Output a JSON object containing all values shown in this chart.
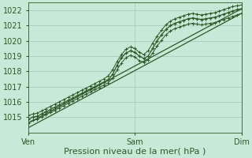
{
  "xlabel": "Pression niveau de la mer( hPa )",
  "bg_color": "#c8e8d8",
  "grid_color": "#a8ccc0",
  "line_color": "#2d5a27",
  "ylim": [
    1014.0,
    1022.5
  ],
  "xlim": [
    0,
    48
  ],
  "yticks": [
    1015,
    1016,
    1017,
    1018,
    1019,
    1020,
    1021,
    1022
  ],
  "xtick_positions": [
    0,
    24,
    48
  ],
  "xtick_labels": [
    "Ven",
    "Sam",
    "Dim"
  ],
  "straight_line1": [
    [
      0,
      48
    ],
    [
      1014.6,
      1022.1
    ]
  ],
  "straight_line2": [
    [
      0,
      48
    ],
    [
      1014.3,
      1021.8
    ]
  ],
  "main_x": [
    0,
    1,
    2,
    3,
    4,
    5,
    6,
    7,
    8,
    9,
    10,
    11,
    12,
    13,
    14,
    15,
    16,
    17,
    18,
    19,
    20,
    21,
    22,
    23,
    24,
    25,
    26,
    27,
    28,
    29,
    30,
    31,
    32,
    33,
    34,
    35,
    36,
    37,
    38,
    39,
    40,
    41,
    42,
    43,
    44,
    45,
    46,
    47,
    48
  ],
  "main_y": [
    1014.85,
    1015.0,
    1015.05,
    1015.2,
    1015.35,
    1015.5,
    1015.65,
    1015.8,
    1015.95,
    1016.1,
    1016.25,
    1016.4,
    1016.55,
    1016.7,
    1016.85,
    1017.0,
    1017.15,
    1017.3,
    1017.45,
    1017.8,
    1018.4,
    1018.9,
    1019.2,
    1019.35,
    1019.25,
    1019.0,
    1018.85,
    1019.0,
    1019.5,
    1020.0,
    1020.4,
    1020.75,
    1021.0,
    1021.15,
    1021.25,
    1021.35,
    1021.45,
    1021.5,
    1021.45,
    1021.4,
    1021.45,
    1021.5,
    1021.55,
    1021.65,
    1021.75,
    1021.85,
    1021.95,
    1022.05,
    1022.1
  ],
  "upper_x": [
    0,
    1,
    2,
    3,
    4,
    5,
    6,
    7,
    8,
    9,
    10,
    11,
    12,
    13,
    14,
    15,
    16,
    17,
    18,
    19,
    20,
    21,
    22,
    23,
    24,
    25,
    26,
    27,
    28,
    29,
    30,
    31,
    32,
    33,
    34,
    35,
    36,
    37,
    38,
    39,
    40,
    41,
    42,
    43,
    44,
    45,
    46,
    47,
    48
  ],
  "upper_y": [
    1015.1,
    1015.2,
    1015.25,
    1015.4,
    1015.55,
    1015.7,
    1015.85,
    1016.0,
    1016.15,
    1016.3,
    1016.45,
    1016.6,
    1016.75,
    1016.9,
    1017.05,
    1017.2,
    1017.35,
    1017.5,
    1017.7,
    1018.1,
    1018.65,
    1019.1,
    1019.45,
    1019.6,
    1019.5,
    1019.25,
    1019.1,
    1019.35,
    1019.85,
    1020.3,
    1020.7,
    1021.05,
    1021.3,
    1021.45,
    1021.55,
    1021.65,
    1021.75,
    1021.8,
    1021.75,
    1021.7,
    1021.75,
    1021.8,
    1021.85,
    1021.95,
    1022.05,
    1022.15,
    1022.25,
    1022.3,
    1022.35
  ],
  "lower_x": [
    0,
    1,
    2,
    3,
    4,
    5,
    6,
    7,
    8,
    9,
    10,
    11,
    12,
    13,
    14,
    15,
    16,
    17,
    18,
    19,
    20,
    21,
    22,
    23,
    24,
    25,
    26,
    27,
    28,
    29,
    30,
    31,
    32,
    33,
    34,
    35,
    36,
    37,
    38,
    39,
    40,
    41,
    42,
    43,
    44,
    45,
    46,
    47,
    48
  ],
  "lower_y": [
    1014.6,
    1014.8,
    1014.85,
    1015.0,
    1015.15,
    1015.3,
    1015.45,
    1015.6,
    1015.75,
    1015.9,
    1016.05,
    1016.2,
    1016.35,
    1016.5,
    1016.65,
    1016.8,
    1016.95,
    1017.1,
    1017.25,
    1017.55,
    1018.1,
    1018.55,
    1018.9,
    1019.05,
    1018.95,
    1018.7,
    1018.6,
    1018.75,
    1019.2,
    1019.65,
    1020.05,
    1020.4,
    1020.65,
    1020.8,
    1020.9,
    1021.0,
    1021.1,
    1021.15,
    1021.1,
    1021.05,
    1021.1,
    1021.15,
    1021.2,
    1021.3,
    1021.4,
    1021.5,
    1021.6,
    1021.7,
    1021.8
  ]
}
